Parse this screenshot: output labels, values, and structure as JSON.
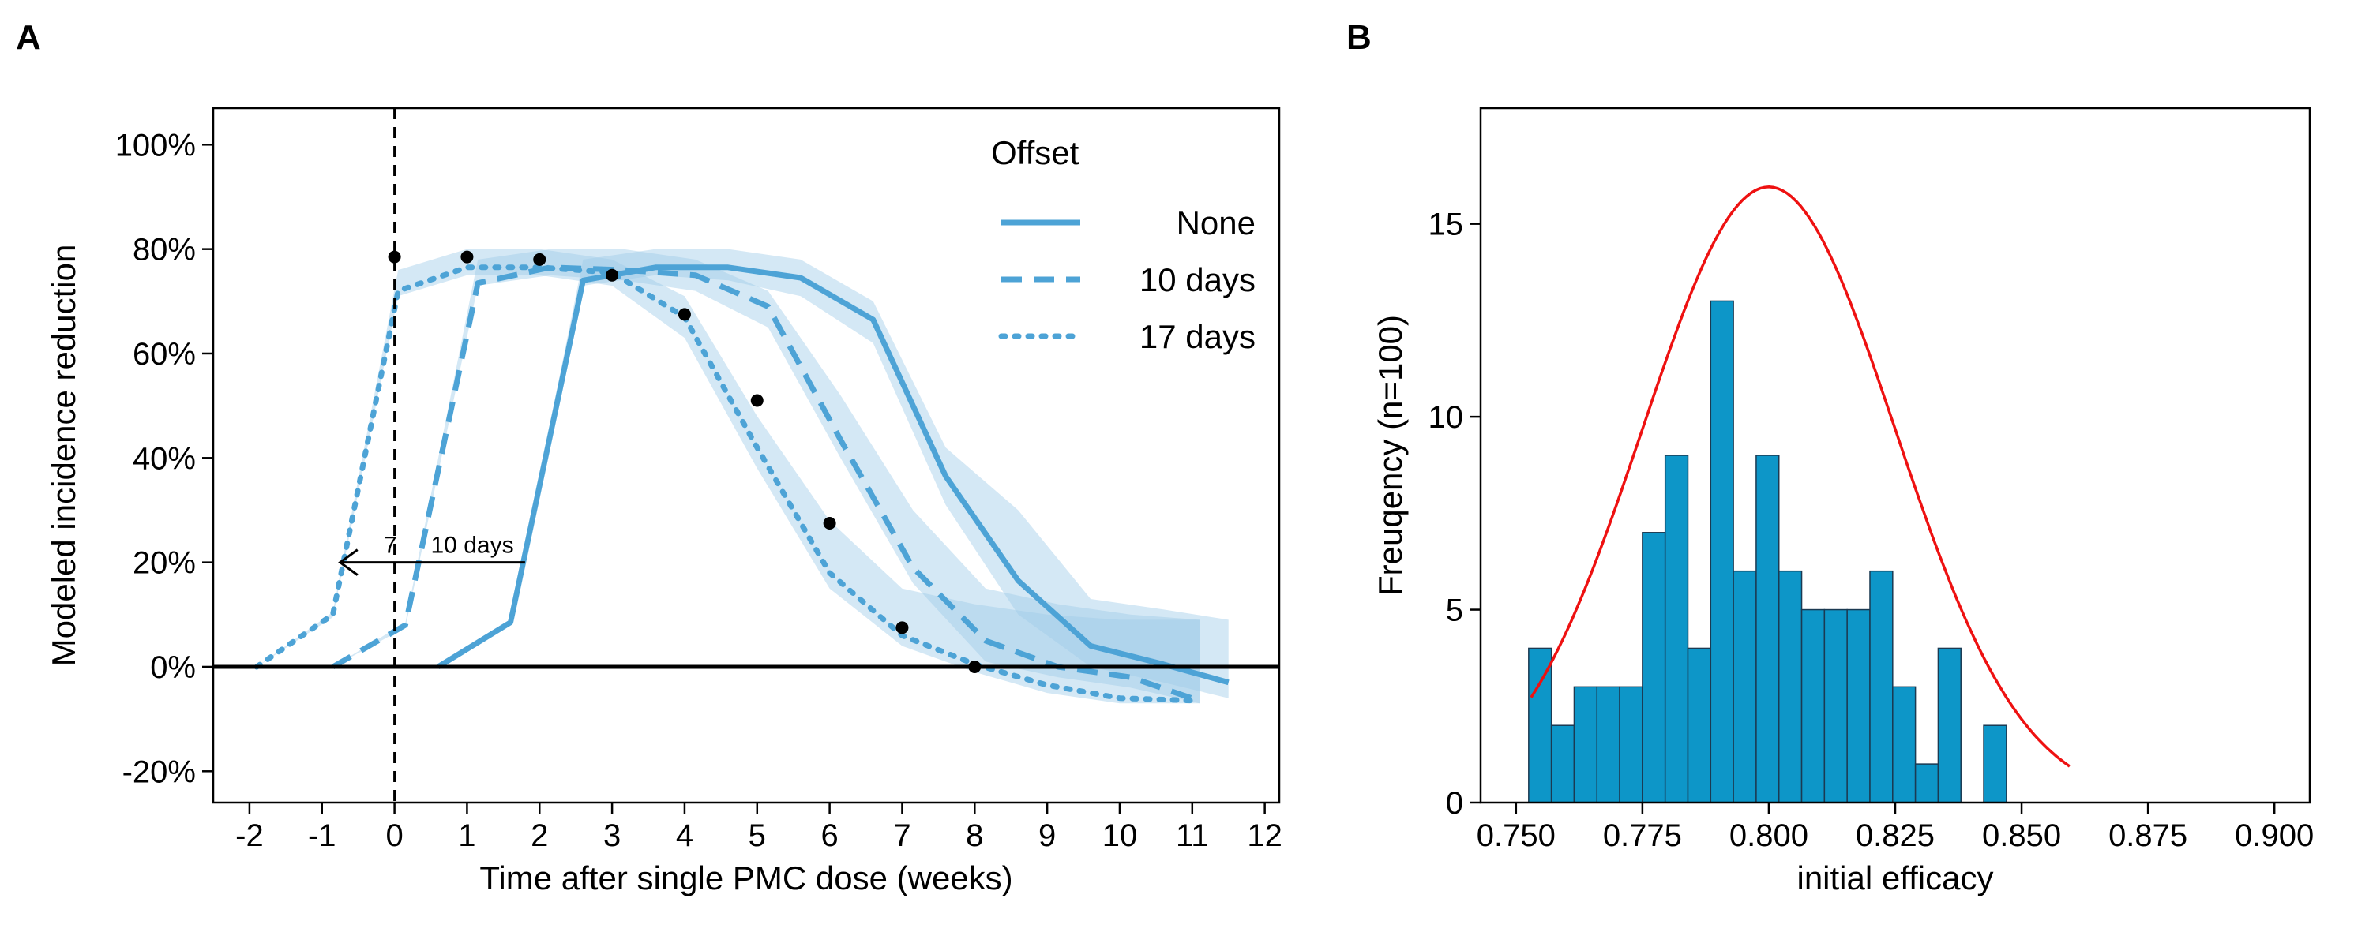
{
  "chart_data": [
    {
      "panel_label": "A",
      "type": "line",
      "xlabel": "Time after single PMC dose (weeks)",
      "ylabel": "Modeled incidence reduction",
      "xlim": [
        -2.5,
        12.2
      ],
      "ylim": [
        -26,
        107
      ],
      "x_ticks": [
        -2,
        -1,
        0,
        1,
        2,
        3,
        4,
        5,
        6,
        7,
        8,
        9,
        10,
        11,
        12
      ],
      "x_tick_labels": [
        "-2",
        "-1",
        "0",
        "1",
        "2",
        "3",
        "4",
        "5",
        "6",
        "7",
        "8",
        "9",
        "10",
        "11",
        "12"
      ],
      "y_ticks": [
        -20,
        0,
        20,
        40,
        60,
        80,
        100
      ],
      "y_tick_labels": [
        "-20%",
        "0%",
        "20%",
        "40%",
        "60%",
        "80%",
        "100%"
      ],
      "grid": false,
      "reference_lines": {
        "horizontal_y": 0,
        "vertical_dashed_x": 0
      },
      "legend": {
        "title": "Offset",
        "position": "top-right",
        "entries": [
          {
            "label": "None",
            "dash": "solid"
          },
          {
            "label": "10 days",
            "dash": "dashed"
          },
          {
            "label": "17 days",
            "dash": "dotted"
          }
        ]
      },
      "line_color": "#4da3d6",
      "band_color": "#9fcbe8",
      "series": [
        {
          "dash": "solid",
          "x": [
            0.6,
            1.6,
            2.6,
            3.6,
            4.6,
            5.6,
            6.6,
            7.6,
            8.6,
            9.6,
            10.6,
            11.5
          ],
          "y": [
            0,
            8.5,
            74,
            76.5,
            76.5,
            74.5,
            66.5,
            36.5,
            16.5,
            4,
            0.5,
            -3
          ],
          "lower": [
            0,
            8,
            73,
            75,
            74,
            71,
            62,
            31,
            10,
            0,
            -3,
            -6
          ],
          "upper": [
            0,
            9,
            78,
            80,
            80,
            78,
            70,
            42,
            30,
            13,
            11,
            9
          ]
        },
        {
          "dash": "dashed",
          "x": [
            -0.85,
            0.15,
            1.15,
            2.15,
            3.15,
            4.15,
            5.15,
            6.15,
            7.15,
            8.15,
            9.15,
            10.15,
            11.1
          ],
          "y": [
            0,
            8,
            73.5,
            76.5,
            76,
            75,
            69,
            43.5,
            19,
            5,
            0,
            -2,
            -6.5
          ],
          "lower": [
            0,
            7.5,
            73,
            75,
            74,
            72,
            65,
            40,
            16,
            1,
            -2,
            -4,
            -7
          ],
          "upper": [
            0,
            8.5,
            78,
            80,
            80,
            78,
            72,
            52,
            30,
            15,
            12,
            10,
            9
          ]
        },
        {
          "dash": "dotted",
          "x": [
            -1.9,
            -0.85,
            0.05,
            1.0,
            2.0,
            3.0,
            4.0,
            5.0,
            6.0,
            7.0,
            8.0,
            9.0,
            10.0,
            11.1
          ],
          "y": [
            0,
            10,
            72,
            76.5,
            76.5,
            75.5,
            67,
            42,
            18,
            6,
            0.5,
            -3.5,
            -6,
            -6.5
          ],
          "lower": [
            0,
            9.5,
            71,
            75,
            75,
            73,
            63,
            38,
            15,
            4,
            -1,
            -5,
            -7,
            -7
          ],
          "upper": [
            0,
            10.5,
            76,
            80,
            80,
            78,
            71,
            48,
            28,
            15,
            12,
            10,
            9,
            9
          ]
        }
      ],
      "observed_points": {
        "x": [
          0,
          1,
          2,
          3,
          4,
          5,
          6,
          7,
          8
        ],
        "y": [
          78.5,
          78.5,
          78,
          75,
          67.5,
          51,
          27.5,
          7.5,
          0
        ]
      },
      "annotation": {
        "text_a": "7",
        "text_b": "10  days",
        "arrow_from": [
          1.8,
          20
        ],
        "arrow_to": [
          -0.75,
          20
        ]
      }
    },
    {
      "panel_label": "B",
      "type": "bar",
      "subtype": "histogram",
      "xlabel": "initial efficacy",
      "ylabel": "Freuqency (n=100)",
      "xlim": [
        0.743,
        0.907
      ],
      "ylim": [
        0,
        18
      ],
      "x_ticks": [
        0.75,
        0.775,
        0.8,
        0.825,
        0.85,
        0.875,
        0.9
      ],
      "x_tick_labels": [
        "0.750",
        "0.775",
        "0.800",
        "0.825",
        "0.850",
        "0.875",
        "0.900"
      ],
      "y_ticks": [
        0,
        5,
        10,
        15
      ],
      "y_tick_labels": [
        "0",
        "5",
        "10",
        "15"
      ],
      "grid": false,
      "bar_color": "#0d96c8",
      "curve_color": "#ee1111",
      "bin_width": 0.0045,
      "bin_starts": [
        0.7525,
        0.757,
        0.7615,
        0.766,
        0.7705,
        0.775,
        0.7795,
        0.784,
        0.7885,
        0.793,
        0.7975,
        0.802,
        0.8065,
        0.811,
        0.8155,
        0.82,
        0.8245,
        0.829,
        0.8335,
        0.838,
        0.8425,
        0.847,
        0.8515,
        0.856
      ],
      "counts": [
        4,
        2,
        3,
        3,
        3,
        7,
        9,
        4,
        13,
        6,
        9,
        6,
        5,
        5,
        5,
        6,
        3,
        1,
        4,
        0,
        2,
        0,
        0,
        0
      ],
      "normal_curve": {
        "mean": 0.8,
        "sd": 0.025,
        "n": 100,
        "bin_width": 0.01,
        "x_range": [
          0.753,
          0.8595
        ]
      }
    }
  ]
}
